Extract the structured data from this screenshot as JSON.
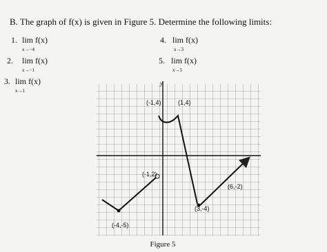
{
  "header": {
    "text": "B. The graph of f(x) is given in Figure 5. Determine the following limits:"
  },
  "problems": [
    {
      "number": "1.",
      "expr": "lim f(x)",
      "approach": "x→−4"
    },
    {
      "number": "2.",
      "expr": "lim f(x)",
      "approach": "x→−1"
    },
    {
      "number": "3.",
      "expr": "lim f(x)",
      "approach": "x→1"
    },
    {
      "number": "4.",
      "expr": "lim f(x)",
      "approach": "x→3"
    },
    {
      "number": "5.",
      "expr": "lim f(x)",
      "approach": "x→5"
    }
  ],
  "figure": {
    "axis_label": "y",
    "points": [
      "(-1,4)",
      "(1,4)",
      "(-1,2)",
      "(6,-2)",
      "(3,-4)",
      "(-4,-5)"
    ],
    "caption": "Figure 5"
  }
}
